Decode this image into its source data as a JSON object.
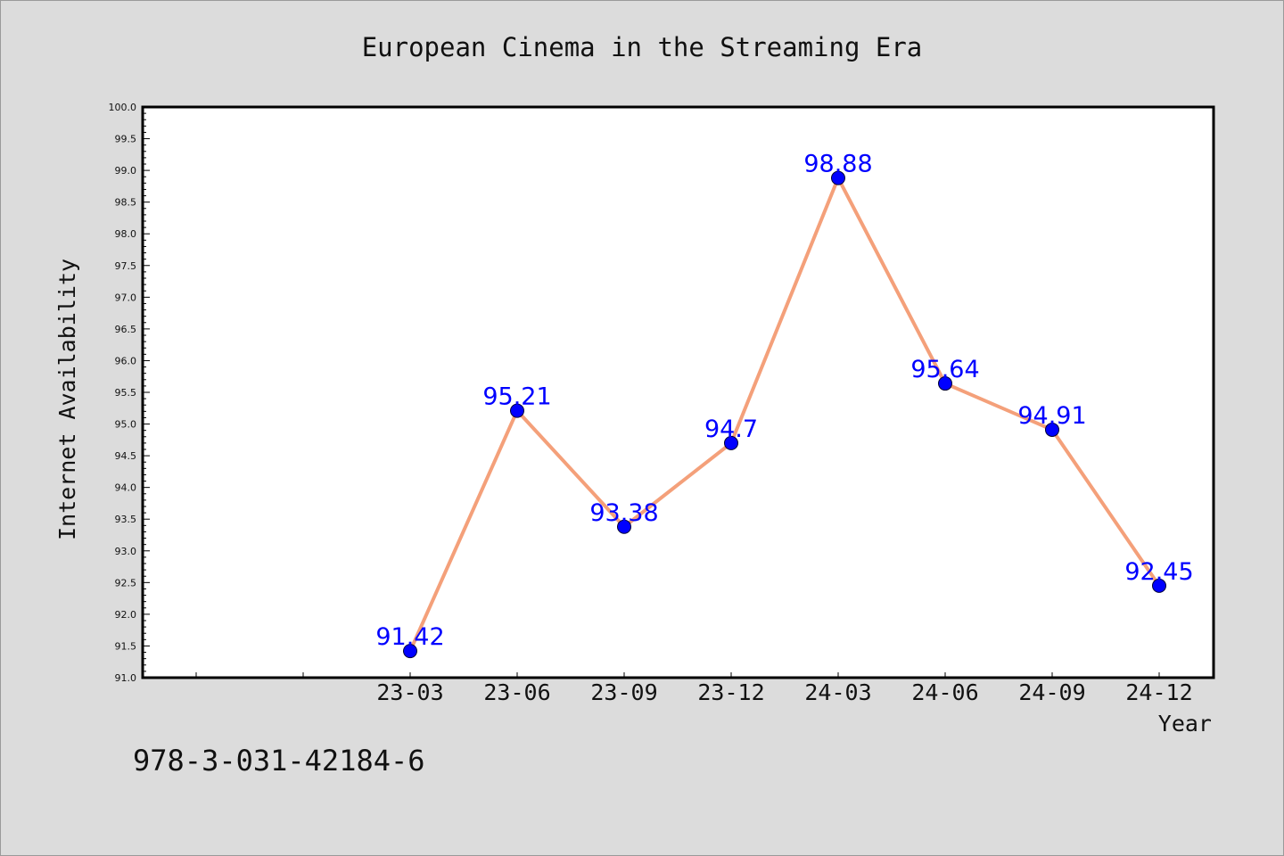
{
  "chart_data": {
    "type": "line",
    "title": "European Cinema in the Streaming Era",
    "xlabel": "Year",
    "ylabel": "Internet Availability",
    "categories": [
      "23-03",
      "23-06",
      "23-09",
      "23-12",
      "24-03",
      "24-06",
      "24-09",
      "24-12"
    ],
    "values": [
      91.42,
      95.21,
      93.38,
      94.7,
      98.88,
      95.64,
      94.91,
      92.45
    ],
    "data_labels": [
      "91.42",
      "95.21",
      "93.38",
      "94.7",
      "98.88",
      "95.64",
      "94.91",
      "92.45"
    ],
    "ylim": [
      91.0,
      100.0
    ],
    "yticks": [
      "91.0",
      "91.5",
      "92.0",
      "92.5",
      "93.0",
      "93.5",
      "94.0",
      "94.5",
      "95.0",
      "95.5",
      "96.0",
      "96.5",
      "97.0",
      "97.5",
      "98.0",
      "98.5",
      "99.0",
      "99.5",
      "100.0"
    ],
    "grid": false,
    "colors": {
      "line": "#f4a07a",
      "marker": "#0000ff",
      "label": "#0000ff"
    }
  },
  "footer": {
    "isbn": "978-3-031-42184-6"
  }
}
